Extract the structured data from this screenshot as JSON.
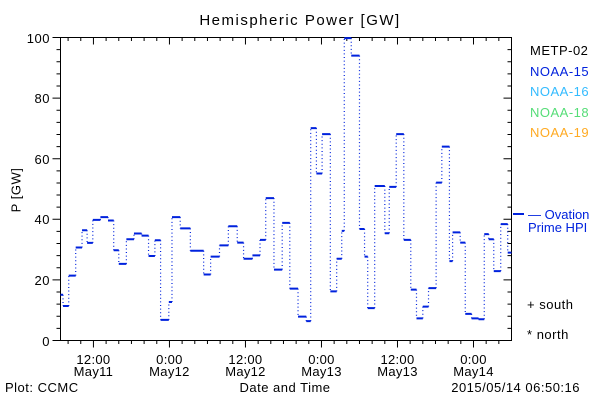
{
  "title": "Hemispheric Power [GW]",
  "y_axis": {
    "title": "P [GW]",
    "tick_values": [
      100,
      80,
      60,
      40,
      20,
      0
    ],
    "minor_step": 4,
    "range": [
      0,
      100
    ]
  },
  "x_axis": {
    "title": "Date and Time",
    "minor_step_hours": 2,
    "range_hours": [
      6.8,
      78.0
    ],
    "ticks": [
      {
        "time": "12:00",
        "date": "May11",
        "hours": 12
      },
      {
        "time": "0:00",
        "date": "May12",
        "hours": 24
      },
      {
        "time": "12:00",
        "date": "May12",
        "hours": 36
      },
      {
        "time": "0:00",
        "date": "May13",
        "hours": 48
      },
      {
        "time": "12:00",
        "date": "May13",
        "hours": 60
      },
      {
        "time": "0:00",
        "date": "May14",
        "hours": 72
      }
    ]
  },
  "legend": {
    "satellites": [
      {
        "label": "METP-02",
        "color": "#000000"
      },
      {
        "label": "NOAA-15",
        "color": "#0022dd"
      },
      {
        "label": "NOAA-16",
        "color": "#33bbff"
      },
      {
        "label": "NOAA-18",
        "color": "#55dd77"
      },
      {
        "label": "NOAA-19",
        "color": "#ffaa22"
      }
    ],
    "model_line1": "— Ovation",
    "model_line2": "Prime HPI",
    "model_color": "#0022dd",
    "south_symbol": "+",
    "south_label": "south",
    "north_symbol": "*",
    "north_label": "north"
  },
  "footer": {
    "left": "Plot: CCMC",
    "timestamp": "2015/05/14 06:50:16"
  },
  "chart_data": {
    "type": "line",
    "subtype": "step",
    "title": "Hemispheric Power [GW]",
    "xlabel": "Date and Time",
    "ylabel": "P [GW]",
    "ylim": [
      0,
      100
    ],
    "xlim_hours": [
      6.8,
      78.0
    ],
    "x_unit": "hours since 2015-05-11 00:00",
    "grid": false,
    "legend_position": "right",
    "line_color": "#0022dd",
    "series": [
      {
        "name": "Ovation Prime HPI",
        "end_t": 78.0,
        "steps_t_gw": [
          [
            6.8,
            15.1
          ],
          [
            7.2,
            11.4
          ],
          [
            8.1,
            21.4
          ],
          [
            9.2,
            30.7
          ],
          [
            10.2,
            36.4
          ],
          [
            11.0,
            32.2
          ],
          [
            11.9,
            39.8
          ],
          [
            13.1,
            40.7
          ],
          [
            14.3,
            39.6
          ],
          [
            15.2,
            29.8
          ],
          [
            16.0,
            25.3
          ],
          [
            17.2,
            33.4
          ],
          [
            18.4,
            35.3
          ],
          [
            19.6,
            34.6
          ],
          [
            20.7,
            27.9
          ],
          [
            21.7,
            33.1
          ],
          [
            22.6,
            6.8
          ],
          [
            23.9,
            12.7
          ],
          [
            24.4,
            40.7
          ],
          [
            25.7,
            37.0
          ],
          [
            27.3,
            29.6
          ],
          [
            29.4,
            21.8
          ],
          [
            30.5,
            27.7
          ],
          [
            31.9,
            31.4
          ],
          [
            33.3,
            37.7
          ],
          [
            34.7,
            32.3
          ],
          [
            35.7,
            27.0
          ],
          [
            37.1,
            28.1
          ],
          [
            38.3,
            33.2
          ],
          [
            39.2,
            47.0
          ],
          [
            40.5,
            23.4
          ],
          [
            41.8,
            38.8
          ],
          [
            43.0,
            17.1
          ],
          [
            44.3,
            7.9
          ],
          [
            45.6,
            6.4
          ],
          [
            46.3,
            70.1
          ],
          [
            47.2,
            55.1
          ],
          [
            48.1,
            68.1
          ],
          [
            49.4,
            16.2
          ],
          [
            50.4,
            27.0
          ],
          [
            51.2,
            36.2
          ],
          [
            51.6,
            99.8
          ],
          [
            52.7,
            94.0
          ],
          [
            54.0,
            36.8
          ],
          [
            54.8,
            27.7
          ],
          [
            55.3,
            10.7
          ],
          [
            56.4,
            51.0
          ],
          [
            58.0,
            35.4
          ],
          [
            58.7,
            50.7
          ],
          [
            59.8,
            68.1
          ],
          [
            61.0,
            33.2
          ],
          [
            62.1,
            16.8
          ],
          [
            63.0,
            7.3
          ],
          [
            64.0,
            11.2
          ],
          [
            64.9,
            17.3
          ],
          [
            66.1,
            52.1
          ],
          [
            67.0,
            64.0
          ],
          [
            68.2,
            26.2
          ],
          [
            68.7,
            35.7
          ],
          [
            69.9,
            32.3
          ],
          [
            70.7,
            8.8
          ],
          [
            71.7,
            7.3
          ],
          [
            72.8,
            7.0
          ],
          [
            73.7,
            35.1
          ],
          [
            74.4,
            33.4
          ],
          [
            75.2,
            22.9
          ],
          [
            76.3,
            38.4
          ],
          [
            77.4,
            29.0
          ]
        ]
      }
    ]
  }
}
